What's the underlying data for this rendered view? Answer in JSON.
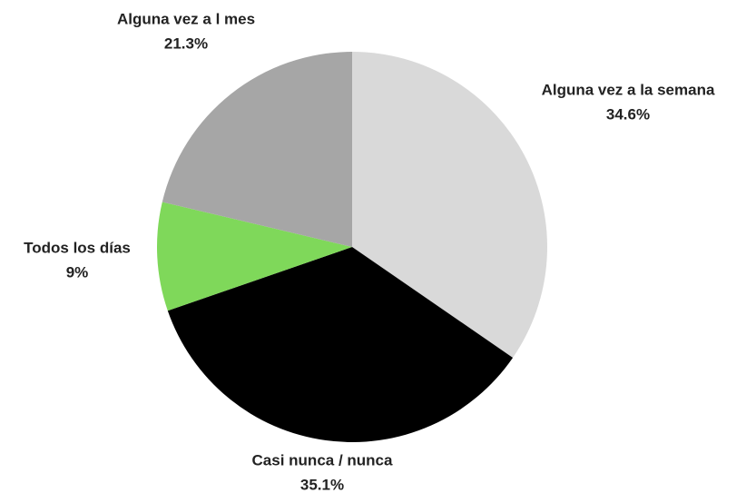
{
  "chart_data": {
    "type": "pie",
    "categories": [
      "Alguna vez a la semana",
      "Casi nunca / nunca",
      "Todos los días",
      "Alguna vez a l mes"
    ],
    "values": [
      34.6,
      35.1,
      9,
      21.3
    ],
    "value_labels": [
      "34.6%",
      "35.1%",
      "9%",
      "21.3%"
    ],
    "colors": [
      "#d9d9d9",
      "#000000",
      "#7fd85a",
      "#a6a6a6"
    ]
  }
}
